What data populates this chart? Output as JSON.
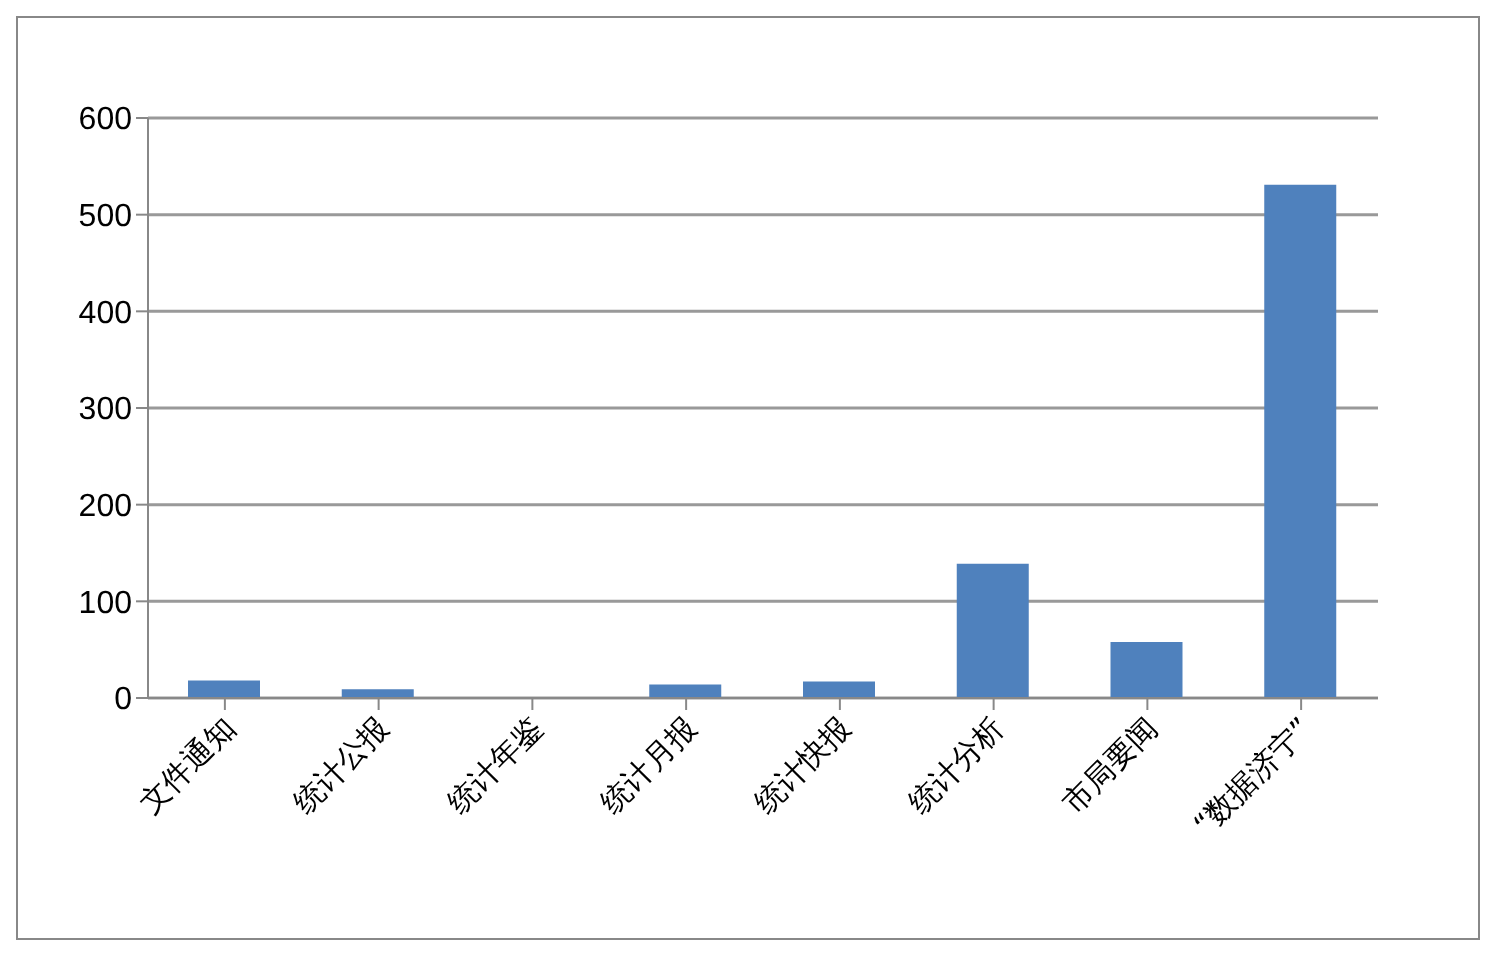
{
  "chart_data": {
    "type": "bar",
    "categories": [
      "文件通知",
      "统计公报",
      "统计年鉴",
      "统计月报",
      "统计快报",
      "统计分析",
      "市局要闻",
      "“数据济宁”"
    ],
    "values": [
      18,
      9,
      1,
      14,
      17,
      139,
      58,
      531
    ],
    "color": "#4f81bd",
    "ylim": [
      0,
      600
    ],
    "yticks": [
      0,
      100,
      200,
      300,
      400,
      500,
      600
    ],
    "grid": "y"
  }
}
